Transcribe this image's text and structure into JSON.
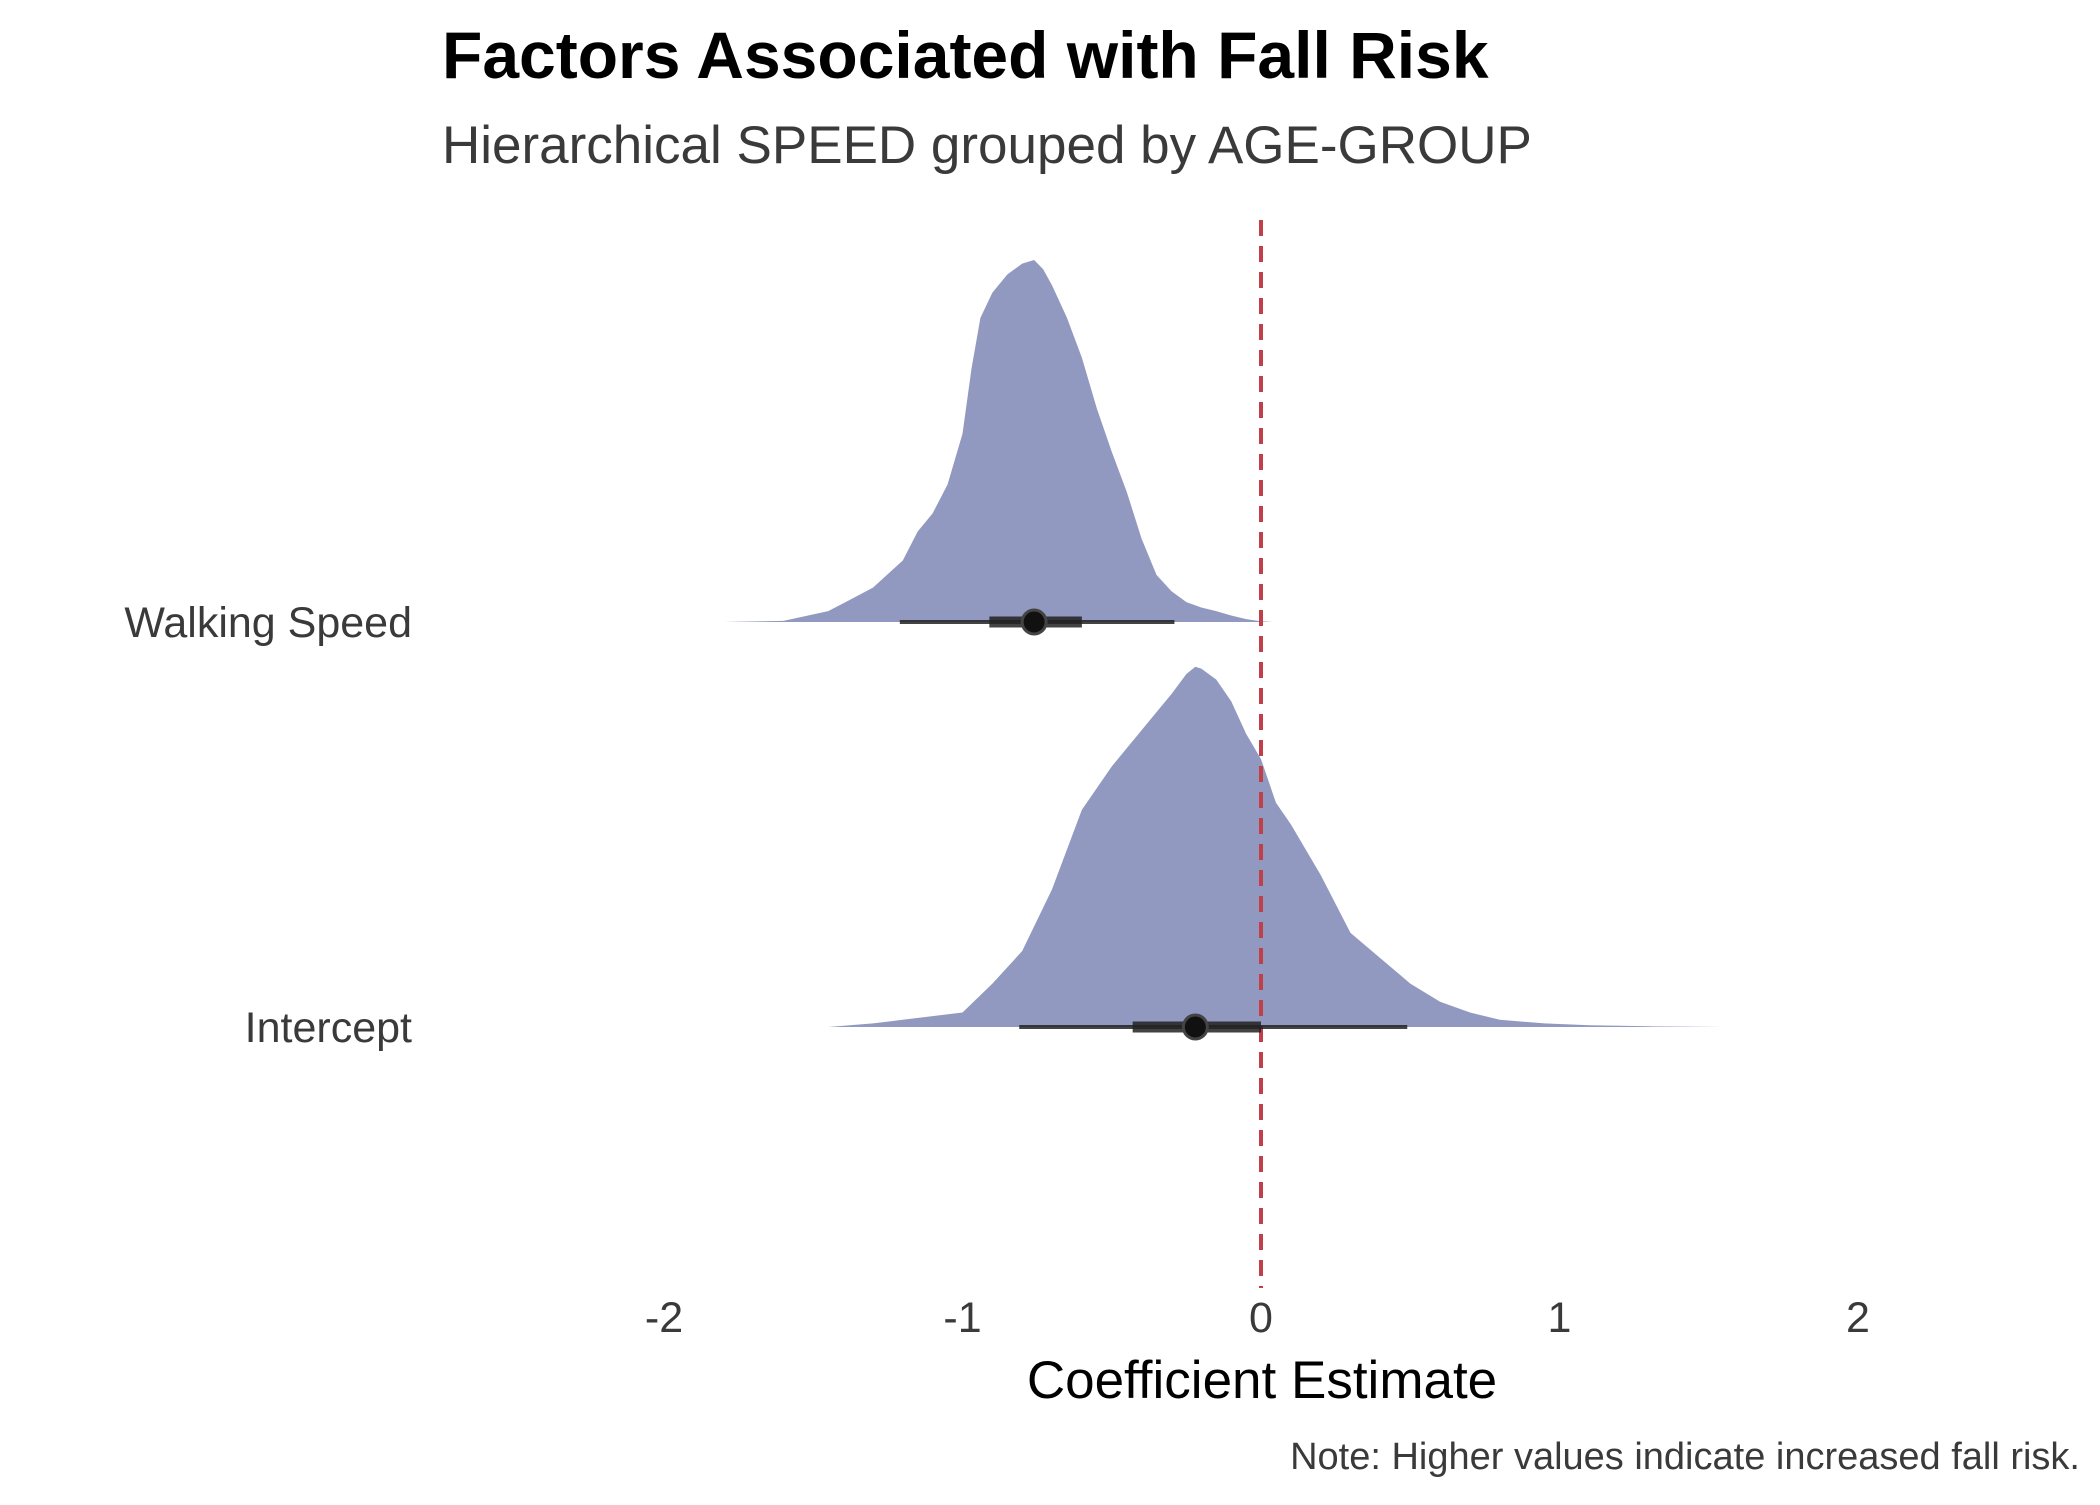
{
  "chart_data": {
    "type": "area",
    "title": "Factors Associated with Fall Risk",
    "subtitle": "Hierarchical SPEED grouped by AGE-GROUP",
    "xlabel": "Coefficient Estimate",
    "ylabel": "",
    "caption": "Note: Higher values indicate increased fall risk.",
    "xlim": [
      -2,
      2
    ],
    "x_ticks": [
      -2,
      -1,
      0,
      1,
      2
    ],
    "x_tick_labels": [
      "-2",
      "-1",
      "0",
      "1",
      "2"
    ],
    "grid": false,
    "legend": "none",
    "reference_line": {
      "x": 0,
      "style": "dashed",
      "color": "#c0404a"
    },
    "fill_color": "#9199c0",
    "interval_color": "#222222",
    "categories": [
      "Walking Speed",
      "Intercept"
    ],
    "series": [
      {
        "category": "Walking Speed",
        "median": -0.76,
        "interval_66": [
          -0.91,
          -0.6
        ],
        "interval_95": [
          -1.21,
          -0.29
        ],
        "density": {
          "x": [
            -1.8,
            -1.6,
            -1.45,
            -1.38,
            -1.3,
            -1.2,
            -1.15,
            -1.1,
            -1.05,
            -1.0,
            -0.97,
            -0.94,
            -0.9,
            -0.85,
            -0.8,
            -0.76,
            -0.73,
            -0.7,
            -0.65,
            -0.6,
            -0.55,
            -0.5,
            -0.45,
            -0.4,
            -0.35,
            -0.3,
            -0.25,
            -0.2,
            -0.15,
            -0.1,
            -0.05,
            0.0,
            0.04
          ],
          "y": [
            0.0,
            0.003,
            0.03,
            0.06,
            0.095,
            0.17,
            0.25,
            0.3,
            0.38,
            0.52,
            0.7,
            0.84,
            0.91,
            0.96,
            0.99,
            1.0,
            0.975,
            0.93,
            0.84,
            0.73,
            0.59,
            0.47,
            0.36,
            0.23,
            0.13,
            0.085,
            0.055,
            0.04,
            0.03,
            0.018,
            0.008,
            0.002,
            0.0
          ]
        }
      },
      {
        "category": "Intercept",
        "median": -0.22,
        "interval_66": [
          -0.43,
          0.0
        ],
        "interval_95": [
          -0.81,
          0.49
        ],
        "density": {
          "x": [
            -1.45,
            -1.3,
            -1.2,
            -1.1,
            -1.0,
            -0.9,
            -0.8,
            -0.7,
            -0.6,
            -0.5,
            -0.45,
            -0.4,
            -0.35,
            -0.3,
            -0.25,
            -0.22,
            -0.2,
            -0.15,
            -0.1,
            -0.05,
            0.0,
            0.05,
            0.1,
            0.2,
            0.3,
            0.4,
            0.5,
            0.6,
            0.7,
            0.8,
            0.95,
            1.1,
            1.3,
            1.55
          ],
          "y": [
            0.0,
            0.01,
            0.02,
            0.03,
            0.04,
            0.12,
            0.21,
            0.38,
            0.6,
            0.72,
            0.77,
            0.82,
            0.87,
            0.92,
            0.975,
            0.995,
            0.99,
            0.96,
            0.9,
            0.81,
            0.74,
            0.62,
            0.56,
            0.42,
            0.26,
            0.19,
            0.12,
            0.07,
            0.04,
            0.02,
            0.01,
            0.005,
            0.002,
            0.0
          ]
        }
      }
    ]
  }
}
